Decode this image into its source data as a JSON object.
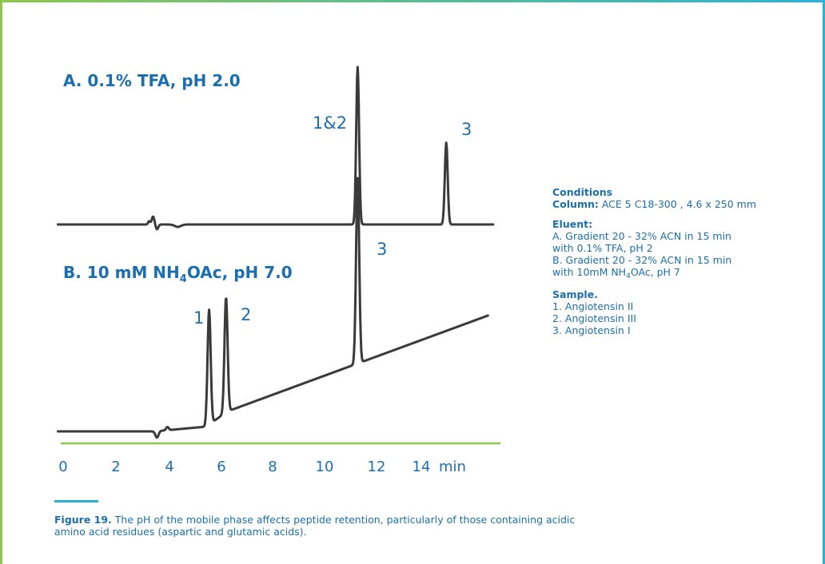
{
  "chart_data": [
    {
      "type": "line",
      "title": "A. 0.1% TFA, pH 2.0",
      "x_unit": "min",
      "peaks": [
        {
          "label": "1&2",
          "x": 11.3,
          "height": 1.0
        },
        {
          "label": "3",
          "x": 14.7,
          "height": 0.52
        }
      ]
    },
    {
      "type": "line",
      "title": "B. 10 mM NH4OAc, pH 7.0",
      "x_unit": "min",
      "peaks": [
        {
          "label": "1",
          "x": 5.6,
          "height": 0.62
        },
        {
          "label": "2",
          "x": 6.25,
          "height": 0.62
        },
        {
          "label": "3",
          "x": 11.3,
          "height": 1.0
        }
      ]
    }
  ],
  "x_axis": {
    "ticks": [
      "0",
      "2",
      "4",
      "6",
      "8",
      "10",
      "12",
      "14"
    ],
    "unit_label": "min",
    "range": [
      0,
      16.5
    ]
  },
  "chart_a": {
    "title_main": "A. 0.1% TFA, pH 2.0",
    "peak_labels": [
      "1&2",
      "3"
    ]
  },
  "chart_b": {
    "title_prefix": "B. 10 mM NH",
    "title_sub": "4",
    "title_suffix": "OAc, pH 7.0",
    "peak_labels": [
      "1",
      "2",
      "3"
    ]
  },
  "conditions": {
    "heading": "Conditions",
    "column_label": "Column:",
    "column_value": " ACE 5 C18-300 , 4.6 x 250 mm",
    "eluent_heading": "Eluent:",
    "eluent_a_line1": "A.  Gradient 20 - 32% ACN in 15 min",
    "eluent_a_line2": "with 0.1% TFA, pH 2",
    "eluent_b_line1": "B.  Gradient 20 - 32% ACN in 15 min",
    "eluent_b_line2_prefix": "with 10mM NH",
    "eluent_b_line2_sub": "4",
    "eluent_b_line2_suffix": "OAc, pH 7",
    "sample_heading": "Sample.",
    "samples": [
      "1. Angiotensin II",
      "2. Angiotensin III",
      "3. Angiotensin I"
    ]
  },
  "caption": {
    "label": "Figure 19.",
    "text": " The pH of the mobile phase affects peptide retention, particularly of those containing acidic amino acid residues (aspartic and glutamic acids)."
  },
  "colors": {
    "accent_blue": "#1b6fae",
    "axis_green": "#8cc84b",
    "trace": "#3a3a3a",
    "rule_cyan": "#2ab0d4"
  }
}
